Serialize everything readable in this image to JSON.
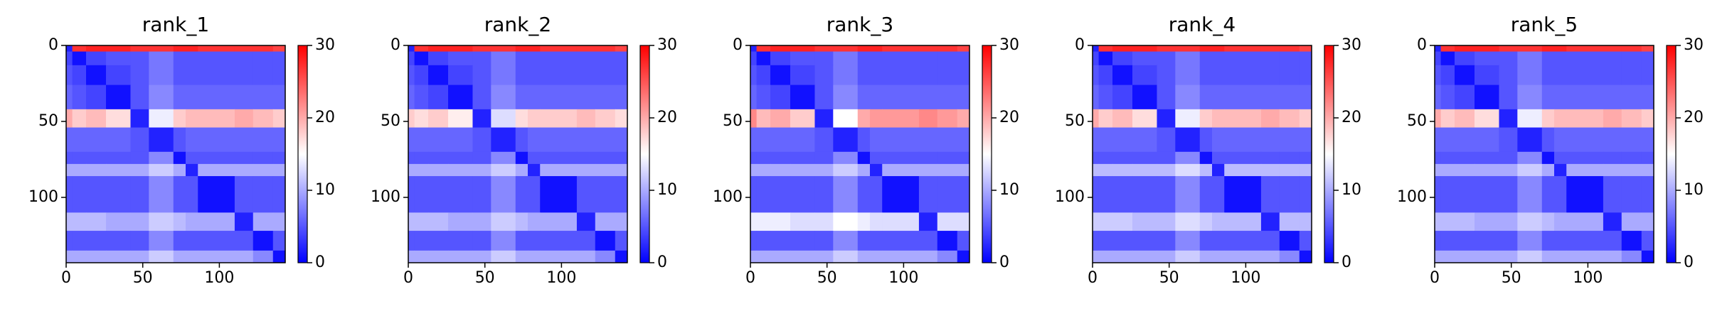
{
  "chart_data": [
    {
      "type": "heatmap",
      "title": "rank_1",
      "xlim": [
        0,
        143
      ],
      "ylim": [
        143,
        0
      ],
      "xticks": [
        0,
        50,
        100
      ],
      "yticks": [
        0,
        50,
        100
      ],
      "clim": [
        0,
        30
      ],
      "cticks": [
        0,
        10,
        20,
        30
      ],
      "x_bins": [
        0,
        4,
        13,
        26,
        42,
        54,
        70,
        78,
        86,
        110,
        122,
        135,
        143
      ],
      "y_bins": [
        0,
        4,
        13,
        26,
        42,
        54,
        70,
        78,
        86,
        110,
        122,
        135,
        143
      ],
      "values": [
        [
          2,
          27,
          28,
          28,
          27,
          27,
          28,
          28,
          27,
          27,
          27,
          26
        ],
        [
          4,
          1,
          4,
          5,
          5,
          7,
          5,
          5,
          5,
          5,
          5,
          5
        ],
        [
          5,
          4,
          1,
          4,
          5,
          7,
          5,
          5,
          5,
          5,
          5,
          5
        ],
        [
          6,
          5,
          4,
          1,
          5,
          8,
          6,
          6,
          6,
          6,
          6,
          6
        ],
        [
          20,
          18,
          19,
          17,
          2,
          14,
          18,
          19,
          19,
          20,
          19,
          18
        ],
        [
          6,
          6,
          6,
          6,
          5,
          2,
          5,
          6,
          6,
          6,
          6,
          6
        ],
        [
          5,
          5,
          5,
          5,
          5,
          8,
          1,
          5,
          5,
          5,
          5,
          5
        ],
        [
          10,
          10,
          10,
          10,
          10,
          12,
          10,
          2,
          10,
          10,
          10,
          10
        ],
        [
          5,
          5,
          5,
          5,
          5,
          8,
          5,
          5,
          1,
          5,
          5,
          5
        ],
        [
          11,
          11,
          11,
          10,
          10,
          12,
          11,
          10,
          10,
          2,
          10,
          10
        ],
        [
          5,
          5,
          5,
          5,
          5,
          8,
          5,
          5,
          5,
          5,
          1,
          5
        ],
        [
          10,
          10,
          10,
          10,
          10,
          12,
          10,
          10,
          10,
          10,
          8,
          1
        ]
      ]
    },
    {
      "type": "heatmap",
      "title": "rank_2",
      "xlim": [
        0,
        143
      ],
      "ylim": [
        143,
        0
      ],
      "xticks": [
        0,
        50,
        100
      ],
      "yticks": [
        0,
        50,
        100
      ],
      "clim": [
        0,
        30
      ],
      "cticks": [
        0,
        10,
        20,
        30
      ],
      "x_bins": [
        0,
        4,
        13,
        26,
        42,
        54,
        70,
        78,
        86,
        110,
        122,
        135,
        143
      ],
      "y_bins": [
        0,
        4,
        13,
        26,
        42,
        54,
        70,
        78,
        86,
        110,
        122,
        135,
        143
      ],
      "values": [
        [
          2,
          27,
          28,
          28,
          27,
          27,
          28,
          28,
          27,
          27,
          27,
          26
        ],
        [
          4,
          1,
          4,
          5,
          5,
          7,
          5,
          5,
          5,
          5,
          5,
          5
        ],
        [
          5,
          4,
          1,
          4,
          5,
          7,
          5,
          5,
          5,
          5,
          5,
          5
        ],
        [
          6,
          5,
          4,
          1,
          5,
          8,
          6,
          6,
          6,
          6,
          6,
          6
        ],
        [
          18,
          17,
          18,
          16,
          2,
          13,
          17,
          18,
          18,
          19,
          18,
          17
        ],
        [
          6,
          6,
          6,
          6,
          5,
          2,
          5,
          6,
          6,
          6,
          6,
          6
        ],
        [
          5,
          5,
          5,
          5,
          5,
          8,
          1,
          5,
          5,
          5,
          5,
          5
        ],
        [
          10,
          10,
          10,
          10,
          10,
          12,
          10,
          2,
          10,
          10,
          10,
          10
        ],
        [
          5,
          5,
          5,
          5,
          5,
          8,
          5,
          5,
          1,
          5,
          5,
          5
        ],
        [
          11,
          11,
          11,
          10,
          10,
          12,
          11,
          10,
          10,
          2,
          10,
          10
        ],
        [
          5,
          5,
          5,
          5,
          5,
          8,
          5,
          5,
          5,
          5,
          1,
          5
        ],
        [
          10,
          10,
          10,
          10,
          10,
          12,
          10,
          10,
          10,
          10,
          8,
          1
        ]
      ]
    },
    {
      "type": "heatmap",
      "title": "rank_3",
      "xlim": [
        0,
        143
      ],
      "ylim": [
        143,
        0
      ],
      "xticks": [
        0,
        50,
        100
      ],
      "yticks": [
        0,
        50,
        100
      ],
      "clim": [
        0,
        30
      ],
      "cticks": [
        0,
        10,
        20,
        30
      ],
      "x_bins": [
        0,
        4,
        13,
        26,
        42,
        54,
        70,
        78,
        86,
        110,
        122,
        135,
        143
      ],
      "y_bins": [
        0,
        4,
        13,
        26,
        42,
        54,
        70,
        78,
        86,
        110,
        122,
        135,
        143
      ],
      "values": [
        [
          2,
          27,
          28,
          28,
          27,
          27,
          28,
          28,
          27,
          27,
          27,
          26
        ],
        [
          4,
          1,
          4,
          5,
          5,
          7,
          5,
          5,
          5,
          5,
          5,
          5
        ],
        [
          5,
          4,
          1,
          4,
          5,
          7,
          5,
          5,
          5,
          5,
          5,
          5
        ],
        [
          6,
          5,
          4,
          1,
          5,
          8,
          6,
          6,
          6,
          6,
          6,
          6
        ],
        [
          22,
          19,
          20,
          18,
          2,
          15,
          20,
          21,
          21,
          22,
          21,
          20
        ],
        [
          6,
          6,
          6,
          6,
          5,
          2,
          5,
          6,
          6,
          6,
          6,
          6
        ],
        [
          5,
          5,
          5,
          5,
          5,
          8,
          1,
          5,
          5,
          5,
          5,
          5
        ],
        [
          10,
          10,
          10,
          10,
          10,
          12,
          10,
          2,
          10,
          10,
          10,
          10
        ],
        [
          5,
          5,
          5,
          5,
          5,
          8,
          5,
          5,
          1,
          5,
          5,
          5
        ],
        [
          14,
          14,
          14,
          13,
          13,
          15,
          14,
          13,
          13,
          2,
          13,
          13
        ],
        [
          5,
          5,
          5,
          5,
          5,
          8,
          5,
          5,
          5,
          5,
          1,
          5
        ],
        [
          10,
          10,
          10,
          10,
          10,
          12,
          10,
          10,
          10,
          10,
          8,
          1
        ]
      ]
    },
    {
      "type": "heatmap",
      "title": "rank_4",
      "xlim": [
        0,
        143
      ],
      "ylim": [
        143,
        0
      ],
      "xticks": [
        0,
        50,
        100
      ],
      "yticks": [
        0,
        50,
        100
      ],
      "clim": [
        0,
        30
      ],
      "cticks": [
        0,
        10,
        20,
        30
      ],
      "x_bins": [
        0,
        4,
        13,
        26,
        42,
        54,
        70,
        78,
        86,
        110,
        122,
        135,
        143
      ],
      "y_bins": [
        0,
        4,
        13,
        26,
        42,
        54,
        70,
        78,
        86,
        110,
        122,
        135,
        143
      ],
      "values": [
        [
          2,
          27,
          28,
          28,
          27,
          27,
          28,
          28,
          27,
          27,
          27,
          26
        ],
        [
          4,
          1,
          4,
          5,
          5,
          7,
          5,
          5,
          5,
          5,
          5,
          5
        ],
        [
          5,
          4,
          1,
          4,
          5,
          7,
          5,
          5,
          5,
          5,
          5,
          5
        ],
        [
          6,
          5,
          4,
          1,
          5,
          8,
          6,
          6,
          6,
          6,
          6,
          6
        ],
        [
          20,
          18,
          19,
          17,
          2,
          14,
          18,
          19,
          19,
          20,
          19,
          18
        ],
        [
          6,
          6,
          6,
          6,
          5,
          2,
          5,
          6,
          6,
          6,
          6,
          6
        ],
        [
          5,
          5,
          5,
          5,
          5,
          8,
          1,
          5,
          5,
          5,
          5,
          5
        ],
        [
          11,
          11,
          11,
          11,
          11,
          13,
          11,
          2,
          11,
          11,
          11,
          11
        ],
        [
          5,
          5,
          5,
          5,
          5,
          8,
          5,
          5,
          1,
          5,
          5,
          5
        ],
        [
          12,
          12,
          12,
          11,
          11,
          13,
          12,
          11,
          11,
          2,
          11,
          11
        ],
        [
          5,
          5,
          5,
          5,
          5,
          8,
          5,
          5,
          5,
          5,
          1,
          5
        ],
        [
          10,
          10,
          10,
          10,
          10,
          12,
          10,
          10,
          10,
          10,
          8,
          1
        ]
      ]
    },
    {
      "type": "heatmap",
      "title": "rank_5",
      "xlim": [
        0,
        143
      ],
      "ylim": [
        143,
        0
      ],
      "xticks": [
        0,
        50,
        100
      ],
      "yticks": [
        0,
        50,
        100
      ],
      "clim": [
        0,
        30
      ],
      "cticks": [
        0,
        10,
        20,
        30
      ],
      "x_bins": [
        0,
        4,
        13,
        26,
        42,
        54,
        70,
        78,
        86,
        110,
        122,
        135,
        143
      ],
      "y_bins": [
        0,
        4,
        13,
        26,
        42,
        54,
        70,
        78,
        86,
        110,
        122,
        135,
        143
      ],
      "values": [
        [
          2,
          27,
          28,
          28,
          27,
          27,
          28,
          28,
          27,
          27,
          27,
          26
        ],
        [
          4,
          1,
          4,
          5,
          5,
          7,
          5,
          5,
          5,
          5,
          5,
          5
        ],
        [
          5,
          4,
          1,
          4,
          5,
          7,
          5,
          5,
          5,
          5,
          5,
          5
        ],
        [
          6,
          5,
          4,
          1,
          5,
          8,
          6,
          6,
          6,
          6,
          6,
          6
        ],
        [
          20,
          18,
          19,
          17,
          2,
          14,
          18,
          19,
          19,
          20,
          19,
          18
        ],
        [
          6,
          6,
          6,
          6,
          5,
          2,
          5,
          6,
          6,
          6,
          6,
          6
        ],
        [
          5,
          5,
          5,
          5,
          5,
          8,
          1,
          5,
          5,
          5,
          5,
          5
        ],
        [
          10,
          10,
          10,
          10,
          10,
          12,
          10,
          2,
          10,
          10,
          10,
          10
        ],
        [
          5,
          5,
          5,
          5,
          5,
          8,
          5,
          5,
          1,
          5,
          5,
          5
        ],
        [
          11,
          11,
          11,
          10,
          10,
          12,
          11,
          10,
          10,
          2,
          10,
          10
        ],
        [
          5,
          5,
          5,
          5,
          5,
          8,
          5,
          5,
          5,
          5,
          1,
          5
        ],
        [
          10,
          10,
          10,
          10,
          10,
          12,
          10,
          10,
          10,
          10,
          8,
          1
        ]
      ]
    }
  ]
}
